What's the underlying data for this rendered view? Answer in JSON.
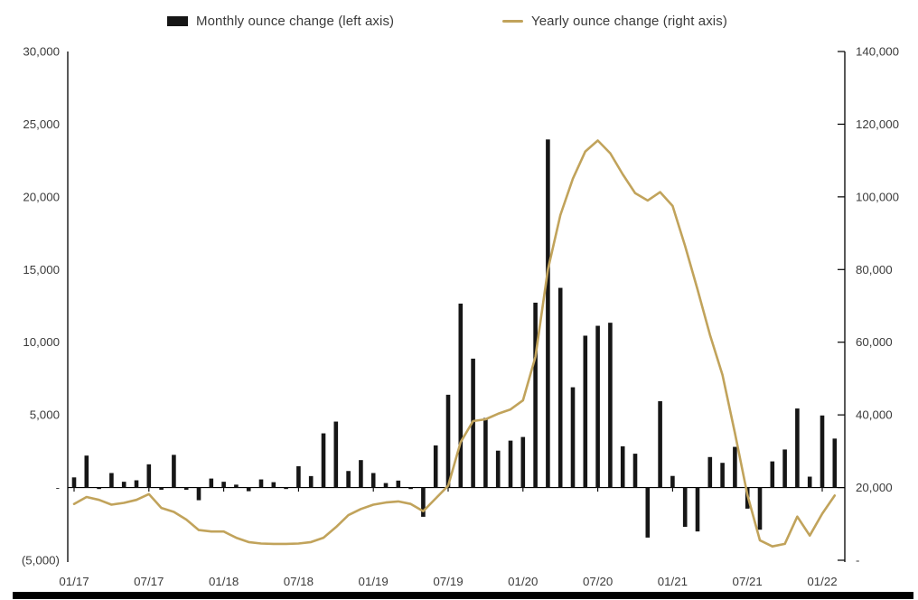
{
  "legend": {
    "monthly_label": "Monthly ounce change (left axis)",
    "yearly_label": "Yearly ounce change (right axis)"
  },
  "colors": {
    "bar": "#161616",
    "line": "#c1a35b",
    "text": "#3b3b3b",
    "axis": "#000000"
  },
  "chart_data": {
    "type": "bar+line combo, dual axis",
    "title": "",
    "xlabel": "",
    "ylabel_left": "Monthly ounce change",
    "ylabel_right": "Yearly ounce change",
    "grid": "off",
    "legend_position": "top",
    "left_axis": {
      "min": -5000,
      "max": 30000,
      "step": 5000,
      "tick_labels": [
        "30,000",
        "25,000",
        "20,000",
        "15,000",
        "10,000",
        "5,000",
        "-",
        "(5,000)"
      ],
      "tick_values": [
        30000,
        25000,
        20000,
        15000,
        10000,
        5000,
        0,
        -5000
      ]
    },
    "right_axis": {
      "min": 0,
      "max": 140000,
      "step": 20000,
      "tick_labels": [
        "140,000",
        "120,000",
        "100,000",
        "80,000",
        "60,000",
        "40,000",
        "20,000",
        "-"
      ],
      "tick_values": [
        140000,
        120000,
        100000,
        80000,
        60000,
        40000,
        20000,
        0
      ]
    },
    "x_axis_visible_labels": [
      "01/17",
      "07/17",
      "01/18",
      "07/18",
      "01/19",
      "07/19",
      "01/20",
      "07/20",
      "01/21",
      "07/21",
      "01/22"
    ],
    "months": [
      "01/17",
      "02/17",
      "03/17",
      "04/17",
      "05/17",
      "06/17",
      "07/17",
      "08/17",
      "09/17",
      "10/17",
      "11/17",
      "12/17",
      "01/18",
      "02/18",
      "03/18",
      "04/18",
      "05/18",
      "06/18",
      "07/18",
      "08/18",
      "09/18",
      "10/18",
      "11/18",
      "12/18",
      "01/19",
      "02/19",
      "03/19",
      "04/19",
      "05/19",
      "06/19",
      "07/19",
      "08/19",
      "09/19",
      "10/19",
      "11/19",
      "12/19",
      "01/20",
      "02/20",
      "03/20",
      "04/20",
      "05/20",
      "06/20",
      "07/20",
      "08/20",
      "09/20",
      "10/20",
      "11/20",
      "12/20",
      "01/21",
      "02/21",
      "03/21",
      "04/21",
      "05/21",
      "06/21",
      "07/21",
      "08/21",
      "09/21",
      "10/21",
      "11/21",
      "12/21",
      "01/22",
      "02/22"
    ],
    "series": [
      {
        "name": "Monthly ounce change (left axis)",
        "type": "bar",
        "axis": "left",
        "values": [
          700,
          2200,
          -100,
          1000,
          400,
          500,
          1600,
          -150,
          2250,
          -150,
          -870,
          620,
          400,
          200,
          -250,
          560,
          370,
          -100,
          1470,
          790,
          3730,
          4540,
          1140,
          1890,
          1000,
          310,
          480,
          -100,
          -2010,
          2900,
          6385,
          12655,
          8870,
          4790,
          2540,
          3230,
          3480,
          12720,
          23950,
          13740,
          6900,
          10450,
          11130,
          11340,
          2840,
          2330,
          -3440,
          5940,
          800,
          -2700,
          -3020,
          2100,
          1700,
          2800,
          -1450,
          -2900,
          1800,
          2620,
          5440,
          750,
          4960,
          3370
        ]
      },
      {
        "name": "Yearly ounce change (right axis)",
        "type": "line",
        "axis": "right",
        "values": [
          15500,
          17400,
          16600,
          15300,
          15800,
          16600,
          18200,
          14400,
          13300,
          11200,
          8300,
          7900,
          7900,
          6200,
          5000,
          4600,
          4500,
          4500,
          4600,
          5000,
          6200,
          9100,
          12400,
          14100,
          15300,
          15900,
          16200,
          15500,
          13500,
          17000,
          20500,
          32500,
          38300,
          38800,
          40300,
          41500,
          44000,
          56000,
          80000,
          95000,
          105000,
          112500,
          115500,
          112000,
          106200,
          101000,
          99000,
          101300,
          97500,
          86500,
          74500,
          62000,
          51000,
          35000,
          18000,
          5500,
          3800,
          4500,
          12000,
          6800,
          12800,
          17800
        ]
      }
    ]
  }
}
